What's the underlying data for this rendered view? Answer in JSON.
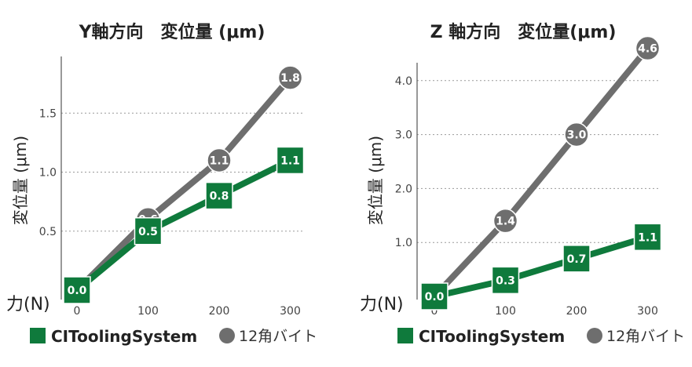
{
  "colors": {
    "green": "#0f7a3c",
    "gray": "#6e6e6e",
    "grid": "#9a9a9a",
    "axis": "#555555"
  },
  "legend": {
    "green_label": "CIToolingSystem",
    "gray_label": "12角バイト"
  },
  "chart_data": [
    {
      "type": "line",
      "title": "Y軸方向　変位量 (μm)",
      "ylabel": "変位量 (μm)",
      "xlabel": "力(N)",
      "x": [
        0,
        100,
        200,
        300
      ],
      "x_tick_labels": [
        "0",
        "100",
        "200",
        "300"
      ],
      "y_ticks": [
        0.5,
        1.0,
        1.5
      ],
      "y_tick_labels": [
        "0.5",
        "1.0",
        "1.5"
      ],
      "ylim": [
        0,
        2.0
      ],
      "grid": true,
      "legend_position": "bottom",
      "series": [
        {
          "name": "12角バイト",
          "marker": "circle",
          "values": [
            0,
            0.6,
            1.1,
            1.8
          ],
          "labels": [
            "",
            "0.6",
            "1.1",
            "1.8"
          ]
        },
        {
          "name": "CIToolingSystem",
          "marker": "square",
          "values": [
            0,
            0.5,
            0.8,
            1.1
          ],
          "labels": [
            "0.0",
            "0.5",
            "0.8",
            "1.1"
          ]
        }
      ]
    },
    {
      "type": "line",
      "title": "Z 軸方向　変位量(μm)",
      "ylabel": "変位量 (μm)",
      "xlabel": "力(N)",
      "x": [
        0,
        100,
        200,
        300
      ],
      "x_tick_labels": [
        "0",
        "100",
        "200",
        "300"
      ],
      "y_ticks": [
        1.0,
        2.0,
        3.0,
        4.0
      ],
      "y_tick_labels": [
        "1.0",
        "2.0",
        "3.0",
        "4.0"
      ],
      "ylim": [
        0,
        4.6
      ],
      "grid": true,
      "legend_position": "bottom",
      "series": [
        {
          "name": "12角バイト",
          "marker": "circle",
          "values": [
            0,
            1.4,
            3.0,
            4.6
          ],
          "labels": [
            "",
            "1.4",
            "3.0",
            "4.6"
          ]
        },
        {
          "name": "CIToolingSystem",
          "marker": "square",
          "values": [
            0,
            0.3,
            0.7,
            1.1
          ],
          "labels": [
            "0.0",
            "0.3",
            "0.7",
            "1.1"
          ]
        }
      ]
    }
  ]
}
